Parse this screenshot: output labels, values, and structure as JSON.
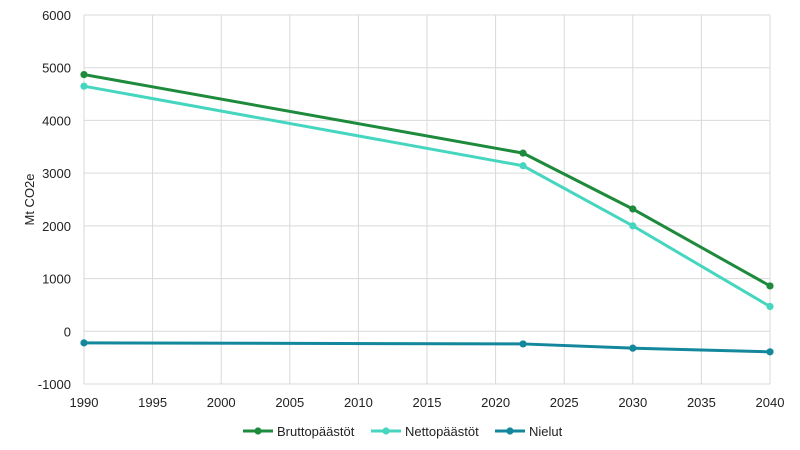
{
  "chart_data": {
    "type": "line",
    "title": "",
    "xlabel": "",
    "ylabel": "Mt CO2e",
    "xlim": [
      1990,
      2040
    ],
    "ylim": [
      -1000,
      6000
    ],
    "xticks": [
      1990,
      1995,
      2000,
      2005,
      2010,
      2015,
      2020,
      2025,
      2030,
      2035,
      2040
    ],
    "yticks": [
      -1000,
      0,
      1000,
      2000,
      3000,
      4000,
      5000,
      6000
    ],
    "grid": true,
    "legend_position": "bottom",
    "series": [
      {
        "name": "Bruttopäästöt",
        "color": "#1e8a3c",
        "x": [
          1990,
          2022,
          2030,
          2040
        ],
        "y": [
          4870,
          3380,
          2320,
          860
        ]
      },
      {
        "name": "Nettopäästöt",
        "color": "#46d6bf",
        "x": [
          1990,
          2022,
          2030,
          2040
        ],
        "y": [
          4650,
          3140,
          2000,
          470
        ]
      },
      {
        "name": "Nielut",
        "color": "#13879c",
        "x": [
          1990,
          2022,
          2030,
          2040
        ],
        "y": [
          -220,
          -240,
          -320,
          -390
        ]
      }
    ]
  }
}
